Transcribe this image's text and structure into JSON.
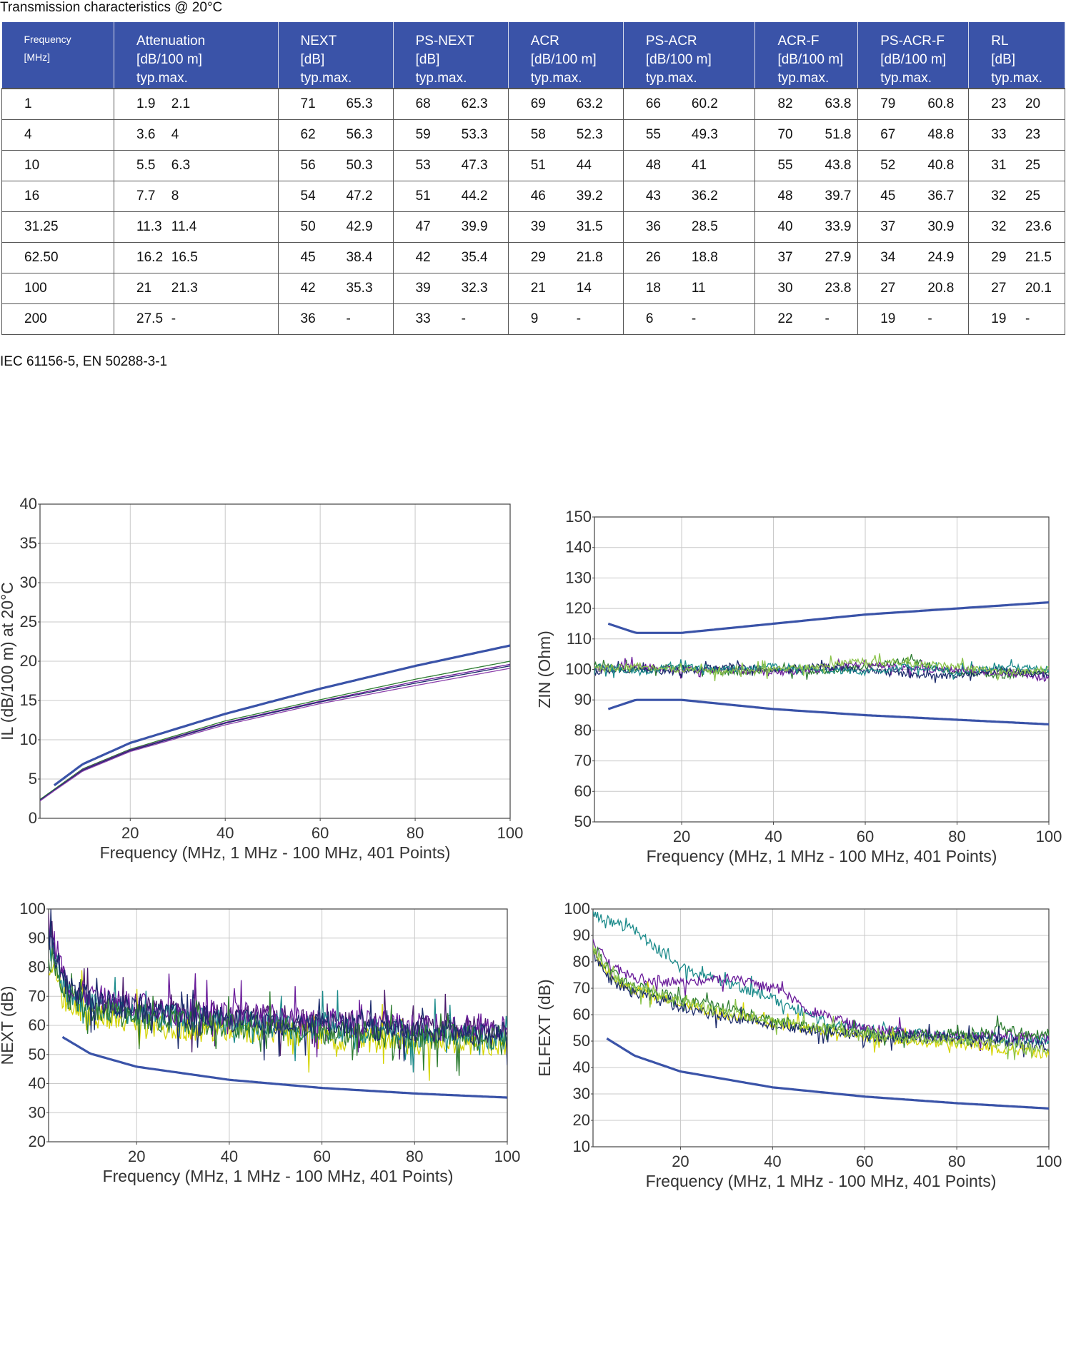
{
  "page": {
    "title": "Transmission characteristics @ 20°C",
    "footnote": "IEC 61156-5, EN 50288-3-1"
  },
  "table": {
    "headers": [
      {
        "name": "Frequency",
        "unit": "[MHz]",
        "sub": ""
      },
      {
        "name": "Attenuation",
        "unit": "[dB/100 m]",
        "sub": "typ.max."
      },
      {
        "name": "NEXT",
        "unit": "[dB]",
        "sub": "typ.max."
      },
      {
        "name": "PS-NEXT",
        "unit": "[dB]",
        "sub": "typ.max."
      },
      {
        "name": "ACR",
        "unit": "[dB/100 m]",
        "sub": "typ.max."
      },
      {
        "name": "PS-ACR",
        "unit": "[dB/100 m]",
        "sub": "typ.max."
      },
      {
        "name": "ACR-F",
        "unit": "[dB/100 m]",
        "sub": "typ.max."
      },
      {
        "name": "PS-ACR-F",
        "unit": "[dB/100 m]",
        "sub": "typ.max."
      },
      {
        "name": "RL",
        "unit": "[dB]",
        "sub": "typ.max."
      }
    ],
    "rows": [
      [
        "1",
        "1.9",
        "2.1",
        "71",
        "65.3",
        "68",
        "62.3",
        "69",
        "63.2",
        "66",
        "60.2",
        "82",
        "63.8",
        "79",
        "60.8",
        "23",
        "20"
      ],
      [
        "4",
        "3.6",
        "4",
        "62",
        "56.3",
        "59",
        "53.3",
        "58",
        "52.3",
        "55",
        "49.3",
        "70",
        "51.8",
        "67",
        "48.8",
        "33",
        "23"
      ],
      [
        "10",
        "5.5",
        "6.3",
        "56",
        "50.3",
        "53",
        "47.3",
        "51",
        "44",
        "48",
        "41",
        "55",
        "43.8",
        "52",
        "40.8",
        "31",
        "25"
      ],
      [
        "16",
        "7.7",
        "8",
        "54",
        "47.2",
        "51",
        "44.2",
        "46",
        "39.2",
        "43",
        "36.2",
        "48",
        "39.7",
        "45",
        "36.7",
        "32",
        "25"
      ],
      [
        "31.25",
        "11.3",
        "11.4",
        "50",
        "42.9",
        "47",
        "39.9",
        "39",
        "31.5",
        "36",
        "28.5",
        "40",
        "33.9",
        "37",
        "30.9",
        "32",
        "23.6"
      ],
      [
        "62.50",
        "16.2",
        "16.5",
        "45",
        "38.4",
        "42",
        "35.4",
        "29",
        "21.8",
        "26",
        "18.8",
        "37",
        "27.9",
        "34",
        "24.9",
        "29",
        "21.5"
      ],
      [
        "100",
        "21",
        "21.3",
        "42",
        "35.3",
        "39",
        "32.3",
        "21",
        "14",
        "18",
        "11",
        "30",
        "23.8",
        "27",
        "20.8",
        "27",
        "20.1"
      ],
      [
        "200",
        "27.5",
        "-",
        "36",
        "-",
        "33",
        "-",
        "9",
        "-",
        "6",
        "-",
        "22",
        "-",
        "19",
        "-",
        "19",
        "-"
      ]
    ]
  },
  "chart_data": [
    {
      "id": "il",
      "type": "line",
      "xlabel": "Frequency (MHz, 1 MHz - 100 MHz, 401 Points)",
      "ylabel": "IL (dB/100 m) at 20°C",
      "xlim": [
        1,
        100
      ],
      "ylim": [
        0,
        40
      ],
      "xticks": [
        20,
        40,
        60,
        80,
        100
      ],
      "yticks": [
        0,
        5,
        10,
        15,
        20,
        25,
        30,
        35,
        40
      ],
      "grid": true,
      "limits": [
        {
          "x": [
            4,
            10,
            20,
            40,
            60,
            80,
            100
          ],
          "y": [
            4.2,
            6.9,
            9.6,
            13.3,
            16.5,
            19.4,
            22.0
          ]
        }
      ],
      "series_colors": [
        "#2e7d32",
        "#6a1b9a",
        "#1b2a6b",
        "#8e44ad"
      ],
      "measured": [
        {
          "x": [
            1,
            4,
            10,
            20,
            40,
            60,
            80,
            100
          ],
          "y": [
            2.4,
            3.7,
            6.3,
            8.8,
            12.4,
            15.1,
            17.7,
            20.0
          ]
        },
        {
          "x": [
            1,
            4,
            10,
            20,
            40,
            60,
            80,
            100
          ],
          "y": [
            2.3,
            3.6,
            6.2,
            8.7,
            12.2,
            14.9,
            17.4,
            19.6
          ]
        },
        {
          "x": [
            1,
            4,
            10,
            20,
            40,
            60,
            80,
            100
          ],
          "y": [
            2.3,
            3.6,
            6.1,
            8.6,
            12.1,
            14.8,
            17.2,
            19.4
          ]
        },
        {
          "x": [
            1,
            4,
            10,
            20,
            40,
            60,
            80,
            100
          ],
          "y": [
            2.2,
            3.5,
            6.0,
            8.5,
            11.9,
            14.6,
            16.9,
            19.1
          ]
        }
      ]
    },
    {
      "id": "zin",
      "type": "line",
      "xlabel": "Frequency (MHz, 1 MHz - 100 MHz, 401 Points)",
      "ylabel": "ZIN (Ohm)",
      "xlim": [
        1,
        100
      ],
      "ylim": [
        50,
        150
      ],
      "xticks": [
        20,
        40,
        60,
        80,
        100
      ],
      "yticks": [
        50,
        60,
        70,
        80,
        90,
        100,
        110,
        120,
        130,
        140,
        150
      ],
      "grid": true,
      "limits": [
        {
          "x": [
            4,
            10,
            20,
            40,
            60,
            80,
            100
          ],
          "y": [
            115,
            112,
            112,
            115,
            118,
            120,
            122
          ]
        },
        {
          "x": [
            4,
            10,
            20,
            40,
            60,
            80,
            100
          ],
          "y": [
            87,
            90,
            90,
            87,
            85,
            83.5,
            82
          ]
        }
      ],
      "series_colors": [
        "#2e7d32",
        "#6a1b9a",
        "#1b2a6b",
        "#1a8a8a",
        "#8bc34a"
      ],
      "measured": [
        {
          "x": [
            1,
            10,
            20,
            30,
            40,
            50,
            60,
            70,
            80,
            90,
            100
          ],
          "y": [
            101,
            100,
            101,
            99,
            100,
            99,
            101,
            103,
            99,
            98,
            99
          ]
        },
        {
          "x": [
            1,
            10,
            20,
            30,
            40,
            50,
            60,
            70,
            80,
            90,
            100
          ],
          "y": [
            100,
            101,
            100,
            100,
            99,
            100,
            102,
            100,
            100,
            99,
            97
          ]
        },
        {
          "x": [
            1,
            10,
            20,
            30,
            40,
            50,
            60,
            70,
            80,
            90,
            100
          ],
          "y": [
            99,
            100,
            99,
            101,
            100,
            101,
            100,
            98,
            98,
            100,
            98
          ]
        },
        {
          "x": [
            1,
            10,
            20,
            30,
            40,
            50,
            60,
            70,
            80,
            90,
            100
          ],
          "y": [
            101,
            99,
            101,
            100,
            101,
            100,
            99,
            101,
            99,
            101,
            100
          ]
        },
        {
          "x": [
            1,
            10,
            20,
            30,
            40,
            50,
            60,
            70,
            80,
            90,
            100
          ],
          "y": [
            100,
            101,
            100,
            99,
            100,
            101,
            103,
            102,
            101,
            99,
            100
          ]
        }
      ]
    },
    {
      "id": "next",
      "type": "line",
      "xlabel": "Frequency (MHz, 1 MHz - 100 MHz, 401 Points)",
      "ylabel": "NEXT (dB)",
      "xlim": [
        1,
        100
      ],
      "ylim": [
        20,
        100
      ],
      "xticks": [
        20,
        40,
        60,
        80,
        100
      ],
      "yticks": [
        20,
        30,
        40,
        50,
        60,
        70,
        80,
        90,
        100
      ],
      "grid": true,
      "limits": [
        {
          "x": [
            4,
            10,
            20,
            40,
            60,
            80,
            100
          ],
          "y": [
            56,
            50.3,
            45.8,
            41.3,
            38.5,
            36.6,
            35.2
          ]
        }
      ],
      "series_colors": [
        "#4a1a6b",
        "#d4d400",
        "#1a8a8a",
        "#6a1b9a",
        "#2e7d32",
        "#1b2a6b"
      ],
      "measured": [
        {
          "x": [
            1,
            5,
            10,
            20,
            30,
            40,
            50,
            60,
            70,
            80,
            90,
            100
          ],
          "y": [
            92,
            72,
            68,
            66,
            64,
            63,
            62,
            61,
            60,
            59,
            59,
            58
          ]
        },
        {
          "x": [
            1,
            5,
            10,
            20,
            30,
            40,
            50,
            60,
            70,
            80,
            90,
            100
          ],
          "y": [
            82,
            68,
            64,
            60,
            59,
            58,
            57,
            56,
            55,
            54,
            54,
            53
          ]
        },
        {
          "x": [
            1,
            5,
            10,
            20,
            30,
            40,
            50,
            60,
            70,
            80,
            90,
            100
          ],
          "y": [
            88,
            71,
            67,
            64,
            62,
            61,
            60,
            59,
            58,
            57,
            57,
            56
          ]
        },
        {
          "x": [
            1,
            5,
            10,
            20,
            30,
            40,
            50,
            60,
            70,
            80,
            90,
            100
          ],
          "y": [
            95,
            74,
            70,
            67,
            65,
            64,
            63,
            62,
            61,
            60,
            60,
            59
          ]
        },
        {
          "x": [
            1,
            5,
            10,
            20,
            30,
            40,
            50,
            60,
            70,
            80,
            90,
            100
          ],
          "y": [
            86,
            70,
            66,
            63,
            61,
            60,
            59,
            58,
            57,
            56,
            56,
            55
          ]
        },
        {
          "x": [
            1,
            5,
            10,
            20,
            30,
            40,
            50,
            60,
            70,
            80,
            90,
            100
          ],
          "y": [
            90,
            73,
            69,
            65,
            63,
            62,
            61,
            60,
            59,
            58,
            58,
            57
          ]
        }
      ]
    },
    {
      "id": "elfext",
      "type": "line",
      "xlabel": "Frequency (MHz, 1 MHz - 100 MHz, 401 Points)",
      "ylabel": "ELFEXT (dB)",
      "xlim": [
        1,
        100
      ],
      "ylim": [
        10,
        100
      ],
      "xticks": [
        20,
        40,
        60,
        80,
        100
      ],
      "yticks": [
        10,
        20,
        30,
        40,
        50,
        60,
        70,
        80,
        90,
        100
      ],
      "grid": true,
      "limits": [
        {
          "x": [
            4,
            10,
            20,
            40,
            60,
            80,
            100
          ],
          "y": [
            51,
            44.5,
            38.5,
            32.5,
            29,
            26.5,
            24.5
          ]
        }
      ],
      "series_colors": [
        "#1a8a8a",
        "#6a1b9a",
        "#d4d400",
        "#2e7d32",
        "#1b2a6b",
        "#8bc34a"
      ],
      "measured": [
        {
          "x": [
            1,
            5,
            10,
            20,
            30,
            40,
            50,
            60,
            70,
            80,
            90,
            100
          ],
          "y": [
            98,
            95,
            92,
            78,
            72,
            66,
            58,
            55,
            53,
            52,
            51,
            50
          ]
        },
        {
          "x": [
            1,
            5,
            10,
            20,
            30,
            40,
            50,
            60,
            70,
            80,
            90,
            100
          ],
          "y": [
            88,
            78,
            74,
            72,
            74,
            70,
            60,
            55,
            53,
            52,
            52,
            51
          ]
        },
        {
          "x": [
            1,
            5,
            10,
            20,
            30,
            40,
            50,
            60,
            70,
            80,
            90,
            100
          ],
          "y": [
            84,
            74,
            69,
            64,
            60,
            57,
            54,
            52,
            50,
            49,
            47,
            45
          ]
        },
        {
          "x": [
            1,
            5,
            10,
            20,
            30,
            40,
            50,
            60,
            70,
            80,
            90,
            100
          ],
          "y": [
            86,
            76,
            71,
            66,
            62,
            58,
            55,
            53,
            52,
            53,
            54,
            52
          ]
        },
        {
          "x": [
            1,
            5,
            10,
            20,
            30,
            40,
            50,
            60,
            70,
            80,
            90,
            100
          ],
          "y": [
            83,
            73,
            68,
            63,
            59,
            56,
            54,
            52,
            51,
            51,
            50,
            48
          ]
        },
        {
          "x": [
            1,
            5,
            10,
            20,
            30,
            40,
            50,
            60,
            70,
            80,
            90,
            100
          ],
          "y": [
            85,
            75,
            70,
            65,
            61,
            58,
            55,
            53,
            51,
            50,
            49,
            47
          ]
        }
      ]
    }
  ]
}
